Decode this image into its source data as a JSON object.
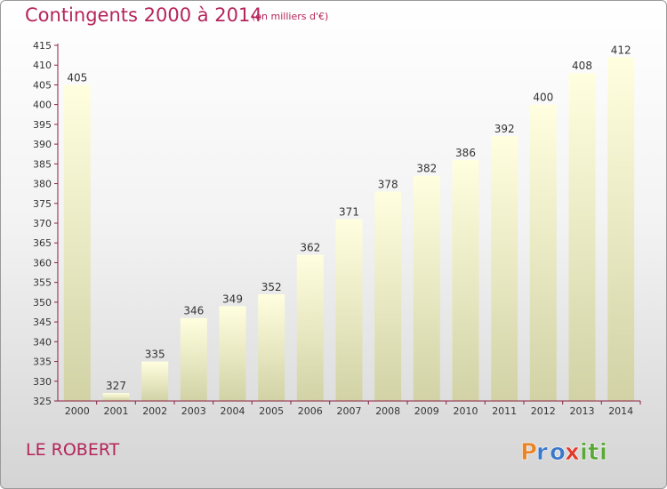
{
  "header": {
    "title": "Contingents 2000 à 2014",
    "subtitle": "(en milliers d'€)"
  },
  "footer": {
    "commune": "LE ROBERT"
  },
  "logo": {
    "letters": [
      "P",
      "r",
      "o",
      "x",
      "i",
      "t",
      "i"
    ],
    "colors": [
      "#e8852a",
      "#3a78c9",
      "#3a78c9",
      "#e23a2a",
      "#5aa838",
      "#5aa838",
      "#5aa838"
    ]
  },
  "chart_data": {
    "type": "bar",
    "categories": [
      "2000",
      "2001",
      "2002",
      "2003",
      "2004",
      "2005",
      "2006",
      "2007",
      "2008",
      "2009",
      "2010",
      "2011",
      "2012",
      "2013",
      "2014"
    ],
    "values": [
      405,
      327,
      335,
      346,
      349,
      352,
      362,
      371,
      378,
      382,
      386,
      392,
      400,
      408,
      412
    ],
    "title": "Contingents 2000 à 2014",
    "ylim": [
      325,
      415
    ],
    "yticks": [
      325,
      330,
      335,
      340,
      345,
      350,
      355,
      360,
      365,
      370,
      375,
      380,
      385,
      390,
      395,
      400,
      405,
      410,
      415
    ],
    "grid": false,
    "bar_color_top": "#ffffe0",
    "bar_color_bottom": "#d2d2a6",
    "axis_color": "#8c2040",
    "text_color": "#333333"
  }
}
